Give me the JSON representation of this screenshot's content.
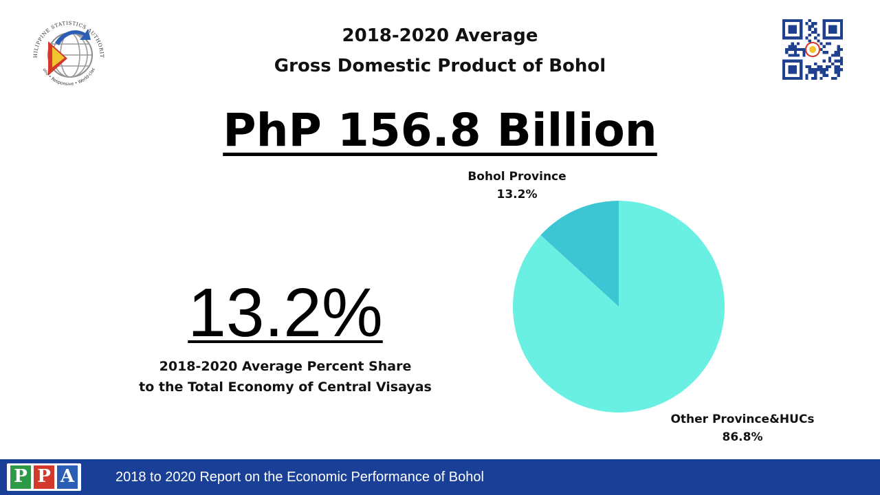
{
  "logo": {
    "name": "PHILIPPINE STATISTICS AUTHORITY",
    "tagline": "Solid • Responsive • World-class"
  },
  "title": {
    "line1": "2018-2020 Average",
    "line2": "Gross Domestic Product of Bohol"
  },
  "headline": "PhP 156.8 Billion",
  "share": {
    "value": "13.2%",
    "caption_line1": "2018-2020 Average Percent Share",
    "caption_line2": "to the Total Economy of Central Visayas"
  },
  "chart_data": {
    "type": "pie",
    "title": "",
    "categories": [
      "Bohol Province",
      "Other Province&HUCs"
    ],
    "values": [
      13.2,
      86.8
    ],
    "data_labels": [
      "13.2%",
      "86.8%"
    ],
    "colors": [
      "#3cc5d2",
      "#6aefe3"
    ]
  },
  "footer": {
    "logo_letters": [
      "P",
      "P",
      "A"
    ],
    "text": "2018 to 2020 Report on the Economic Performance of Bohol"
  },
  "colors": {
    "footer_bar": "#1a3f96",
    "accent_red": "#d43a2c",
    "accent_yellow": "#f2c530",
    "accent_blue": "#2a5fb5"
  },
  "icons": {
    "logo": "psa-seal-icon",
    "qr": "qr-code-icon"
  }
}
